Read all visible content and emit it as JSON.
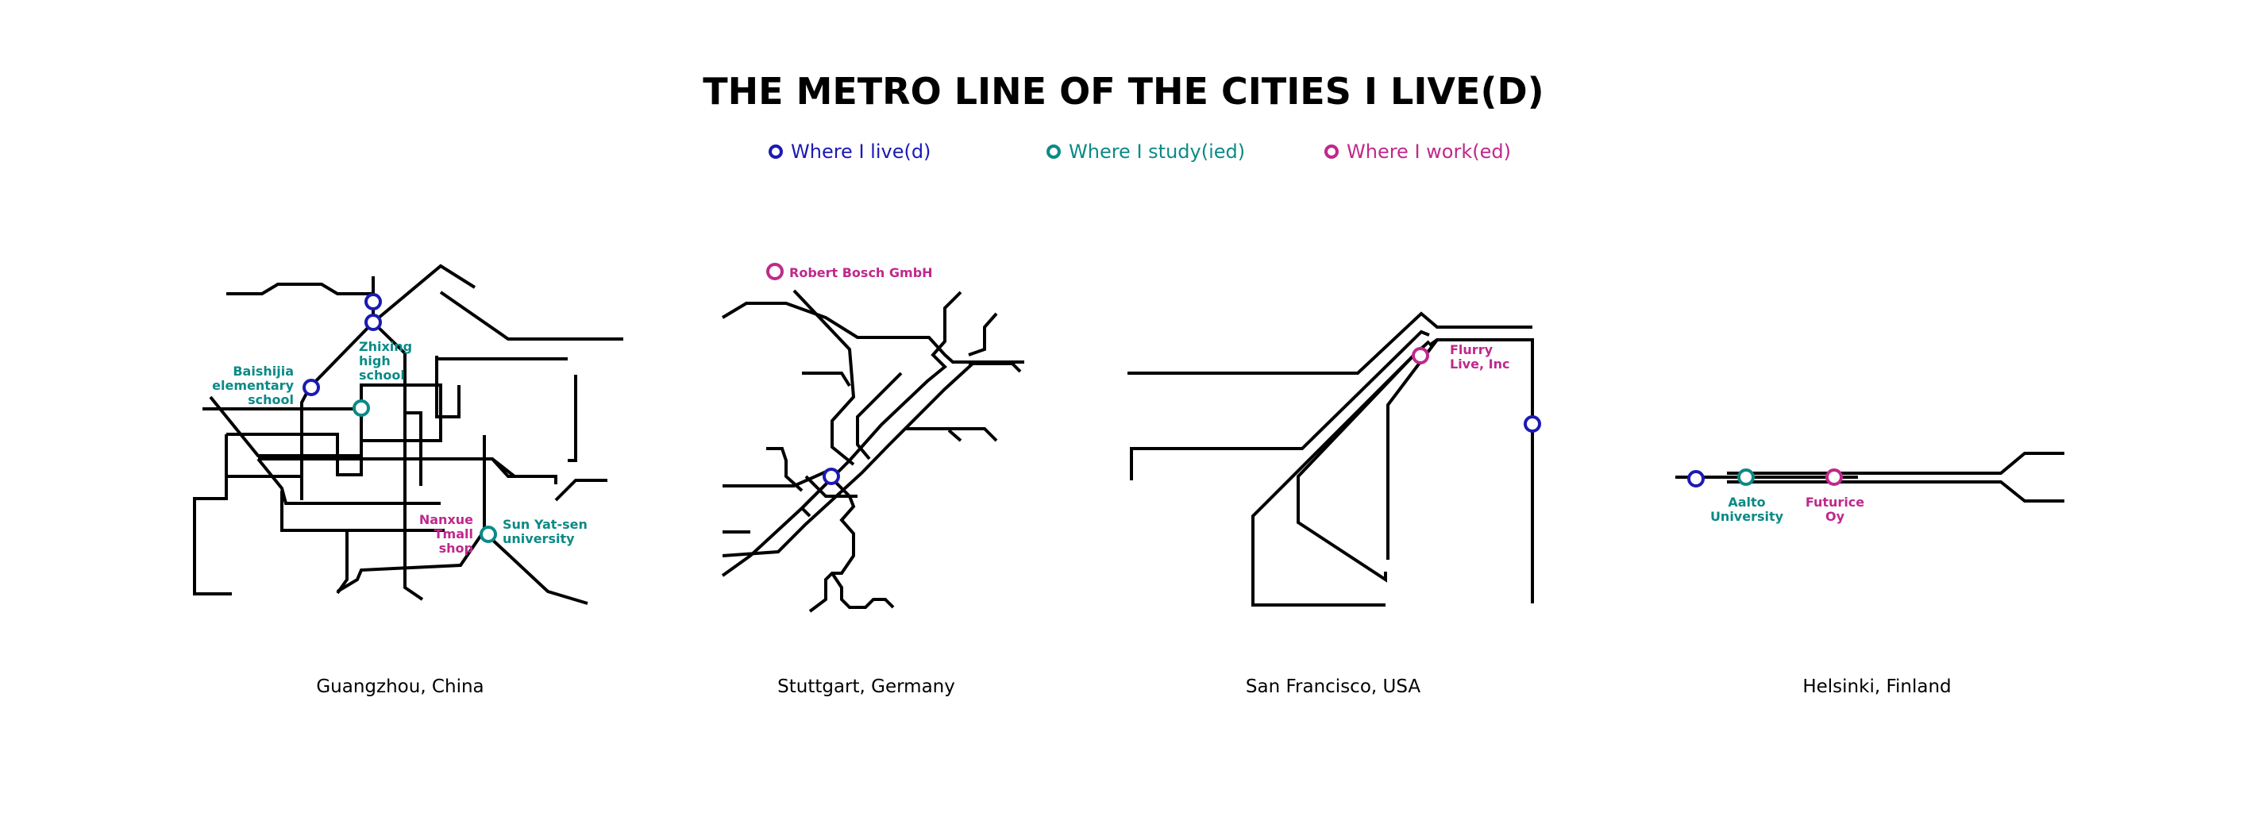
{
  "title": "THE METRO LINE OF THE CITIES I LIVE(D)",
  "legend": {
    "lived": {
      "label": "Where I live(d)",
      "color": "#1a1ab4"
    },
    "studied": {
      "label": "Where I study(ied)",
      "color": "#0b8a86"
    },
    "worked": {
      "label": "Where I work(ed)",
      "color": "#c0288c"
    }
  },
  "cities": [
    {
      "name": "Guangzhou, China",
      "places": [
        {
          "label": "Baishijia elementary school",
          "lines": [
            "Baishijia",
            "elementary",
            "school"
          ],
          "type": "studied"
        },
        {
          "label": "Zhixing high school",
          "lines": [
            "Zhixing",
            "high",
            "school"
          ],
          "type": "studied"
        },
        {
          "label": "Nanxue Tmall shop",
          "lines": [
            "Nanxue",
            "Tmall",
            "shop"
          ],
          "type": "worked"
        },
        {
          "label": "Sun Yat-sen university",
          "lines": [
            "Sun Yat-sen",
            "university"
          ],
          "type": "studied"
        }
      ]
    },
    {
      "name": "Stuttgart, Germany",
      "places": [
        {
          "label": "Robert Bosch GmbH",
          "lines": [
            "Robert Bosch GmbH"
          ],
          "type": "worked"
        }
      ]
    },
    {
      "name": "San Francisco, USA",
      "places": [
        {
          "label": "Flurry Live, Inc",
          "lines": [
            "Flurry",
            "Live, Inc"
          ],
          "type": "worked"
        }
      ]
    },
    {
      "name": "Helsinki, Finland",
      "places": [
        {
          "label": "Aalto University",
          "lines": [
            "Aalto",
            "University"
          ],
          "type": "studied"
        },
        {
          "label": "Futurice Oy",
          "lines": [
            "Futurice",
            "Oy"
          ],
          "type": "worked"
        }
      ]
    }
  ]
}
